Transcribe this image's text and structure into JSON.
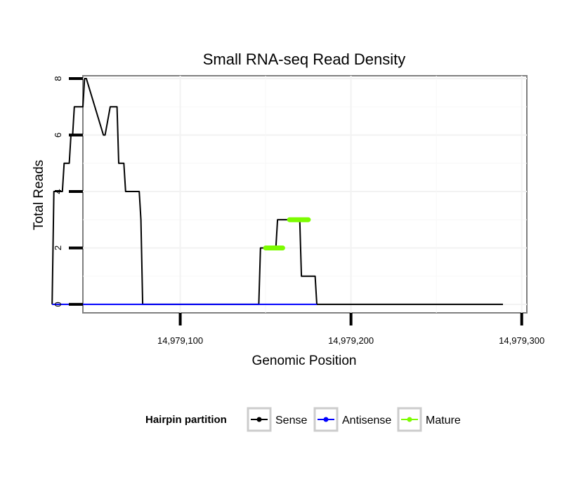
{
  "chart_data": {
    "type": "line",
    "title": "Small RNA-seq Read Density",
    "xlabel": "Genomic Position",
    "ylabel": "Total Reads",
    "xlim": [
      14979043,
      14979303
    ],
    "ylim": [
      -0.3,
      8.1
    ],
    "x_ticks": [
      14979100,
      14979200,
      14979300
    ],
    "x_tick_labels": [
      "14,979,100",
      "14,979,200",
      "14,979,300"
    ],
    "y_ticks": [
      0,
      2,
      4,
      6,
      8
    ],
    "y_tick_labels": [
      "0",
      "2",
      "4",
      "6",
      "8"
    ],
    "grid": true,
    "legend": {
      "title": "Hairpin partition",
      "position": "bottom",
      "entries": [
        "Sense",
        "Antisense",
        "Mature"
      ]
    },
    "series": [
      {
        "name": "Sense",
        "color": "#000000",
        "x": [
          14979025,
          14979026,
          14979031,
          14979032,
          14979035,
          14979036,
          14979037,
          14979038,
          14979041,
          14979042,
          14979043,
          14979044,
          14979045,
          14979055,
          14979056,
          14979059,
          14979060,
          14979061,
          14979063,
          14979064,
          14979067,
          14979068,
          14979071,
          14979072,
          14979073,
          14979076,
          14979077,
          14979078,
          14979079,
          14979088,
          14979089,
          14979090,
          14979146,
          14979147,
          14979156,
          14979157,
          14979160,
          14979161,
          14979170,
          14979171,
          14979179,
          14979180,
          14979289
        ],
        "values": [
          0,
          4,
          4,
          5,
          5,
          6,
          6,
          7,
          7,
          7,
          7,
          8,
          8,
          6,
          6,
          7,
          7,
          7,
          7,
          5,
          5,
          4,
          4,
          4,
          4,
          4,
          3,
          0,
          0,
          0,
          0,
          0,
          0,
          2,
          2,
          3,
          3,
          3,
          3,
          1,
          1,
          0,
          0
        ]
      },
      {
        "name": "Antisense",
        "color": "#0000ff",
        "x": [
          14979025,
          14979089,
          14979146,
          14979180
        ],
        "values": [
          0,
          0,
          0,
          0
        ]
      },
      {
        "name": "Mature",
        "color": "#7cfc00",
        "segments": [
          {
            "x": [
              14979150,
              14979160
            ],
            "values": [
              2,
              2
            ]
          },
          {
            "x": [
              14979164,
              14979175
            ],
            "values": [
              3,
              3
            ]
          }
        ]
      }
    ]
  }
}
